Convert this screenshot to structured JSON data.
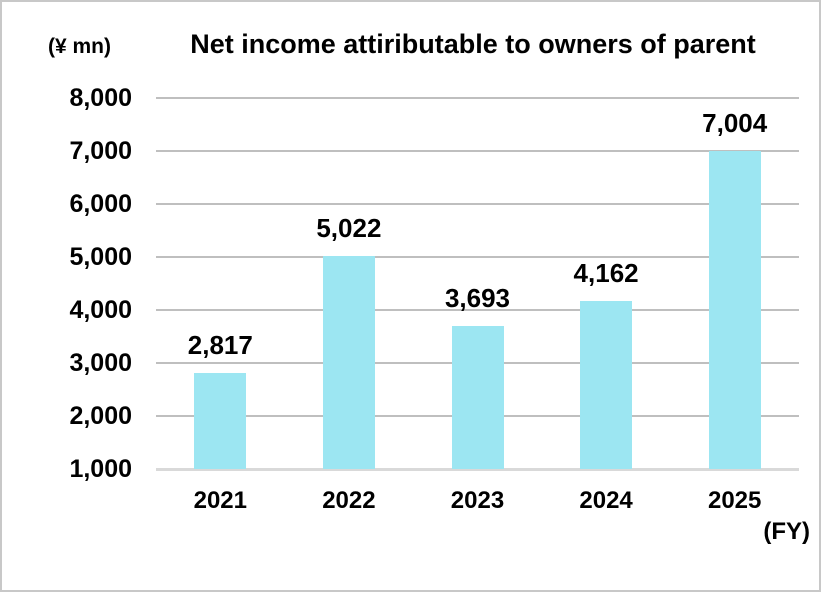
{
  "header": {
    "unit_label": "(¥ mn)",
    "title": "Net income attiributable to owners of parent"
  },
  "footer": {
    "axis_unit": "(FY)"
  },
  "chart_data": {
    "type": "bar",
    "title": "Net income attiributable to owners of parent",
    "xlabel": "(FY)",
    "ylabel": "(¥ mn)",
    "categories": [
      "2021",
      "2022",
      "2023",
      "2024",
      "2025"
    ],
    "values": [
      2817,
      5022,
      3693,
      4162,
      7004
    ],
    "data_labels": [
      "2,817",
      "5,022",
      "3,693",
      "4,162",
      "7,004"
    ],
    "ylim": [
      1000,
      8000
    ],
    "ytick_step": 1000,
    "ytick_labels": [
      "1,000",
      "2,000",
      "3,000",
      "4,000",
      "5,000",
      "6,000",
      "7,000",
      "8,000"
    ],
    "grid": "horizontal",
    "legend": "none",
    "colors": {
      "bar_fill": "#9ce6f2",
      "gridline": "#bfbfbf",
      "axis_line": "#d9d9d9",
      "text": "#000000",
      "border": "#c8c8c8",
      "background": "#ffffff"
    }
  }
}
